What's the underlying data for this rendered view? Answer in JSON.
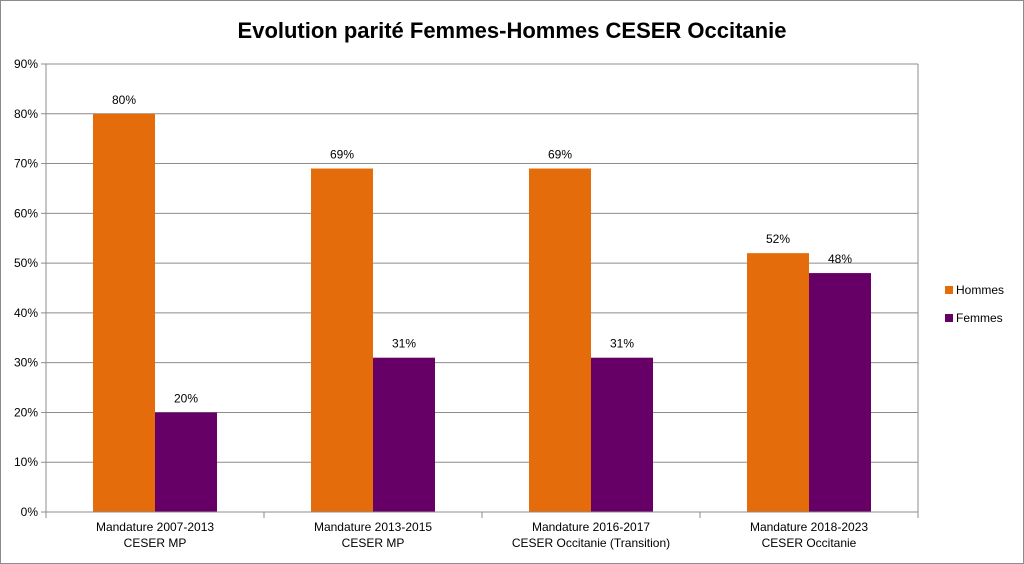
{
  "chart_data": {
    "type": "bar",
    "title": "Evolution parité Femmes-Hommes CESER Occitanie",
    "categories": [
      [
        "Mandature 2007-2013",
        "CESER MP"
      ],
      [
        "Mandature 2013-2015",
        "CESER MP"
      ],
      [
        "Mandature 2016-2017",
        "CESER Occitanie (Transition)"
      ],
      [
        "Mandature 2018-2023",
        "CESER Occitanie"
      ]
    ],
    "series": [
      {
        "name": "Hommes",
        "color": "#E46C0A",
        "values": [
          80,
          69,
          69,
          52
        ],
        "labels": [
          "80%",
          "69%",
          "69%",
          "52%"
        ]
      },
      {
        "name": "Femmes",
        "color": "#660066",
        "values": [
          20,
          31,
          31,
          48
        ],
        "labels": [
          "20%",
          "31%",
          "31%",
          "48%"
        ]
      }
    ],
    "yticks": [
      "0%",
      "10%",
      "20%",
      "30%",
      "40%",
      "50%",
      "60%",
      "70%",
      "80%",
      "90%"
    ],
    "ylim": [
      0,
      90
    ],
    "grid": true,
    "legend_position": "right"
  }
}
